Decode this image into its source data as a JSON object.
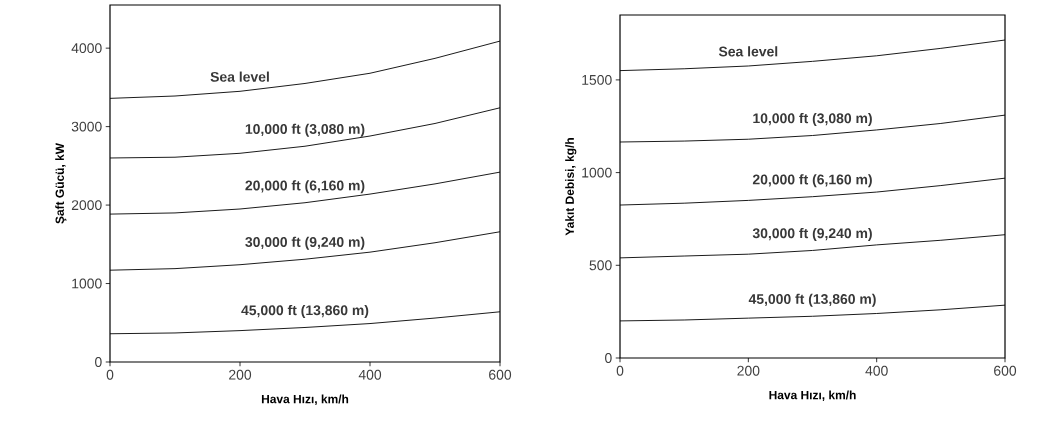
{
  "chart_data": [
    {
      "type": "line",
      "xlabel": "Hava Hızı, km/h",
      "ylabel": "Şaft Gücü, kW",
      "x": [
        0,
        100,
        200,
        300,
        400,
        500,
        600
      ],
      "xlim": [
        0,
        600
      ],
      "ylim": [
        0,
        4550
      ],
      "xticks": [
        0,
        200,
        400,
        600
      ],
      "yticks": [
        0,
        1000,
        2000,
        3000,
        4000
      ],
      "series": [
        {
          "name": "Sea level",
          "color": "#000000",
          "values": [
            3360,
            3390,
            3450,
            3550,
            3680,
            3870,
            4090
          ]
        },
        {
          "name": "10,000 ft (3,080 m)",
          "color": "#000000",
          "values": [
            2600,
            2610,
            2660,
            2750,
            2880,
            3040,
            3240
          ]
        },
        {
          "name": "20,000 ft (6,160 m)",
          "color": "#000000",
          "values": [
            1885,
            1900,
            1950,
            2030,
            2140,
            2270,
            2420
          ]
        },
        {
          "name": "30,000 ft (9,240 m)",
          "color": "#000000",
          "values": [
            1170,
            1190,
            1240,
            1310,
            1400,
            1520,
            1660
          ]
        },
        {
          "name": "45,000 ft (13,860 m)",
          "color": "#000000",
          "values": [
            360,
            370,
            400,
            440,
            490,
            560,
            640
          ]
        }
      ]
    },
    {
      "type": "line",
      "xlabel": "Hava Hızı, km/h",
      "ylabel": "Yakıt Debisi, kg/h",
      "x": [
        0,
        100,
        200,
        300,
        400,
        500,
        600
      ],
      "xlim": [
        0,
        600
      ],
      "ylim": [
        0,
        1850
      ],
      "xticks": [
        0,
        200,
        400,
        600
      ],
      "yticks": [
        0,
        500,
        1000,
        1500
      ],
      "series": [
        {
          "name": "Sea level",
          "color": "#000000",
          "values": [
            1550,
            1560,
            1575,
            1600,
            1630,
            1670,
            1715
          ]
        },
        {
          "name": "10,000 ft (3,080 m)",
          "color": "#000000",
          "values": [
            1165,
            1170,
            1180,
            1200,
            1230,
            1265,
            1310
          ]
        },
        {
          "name": "20,000 ft (6,160 m)",
          "color": "#000000",
          "values": [
            825,
            835,
            850,
            870,
            895,
            930,
            970
          ]
        },
        {
          "name": "30,000 ft (9,240 m)",
          "color": "#000000",
          "values": [
            540,
            550,
            560,
            580,
            610,
            635,
            665
          ]
        },
        {
          "name": "45,000 ft (13,860 m)",
          "color": "#000000",
          "values": [
            200,
            205,
            215,
            225,
            240,
            260,
            285
          ]
        }
      ]
    }
  ]
}
